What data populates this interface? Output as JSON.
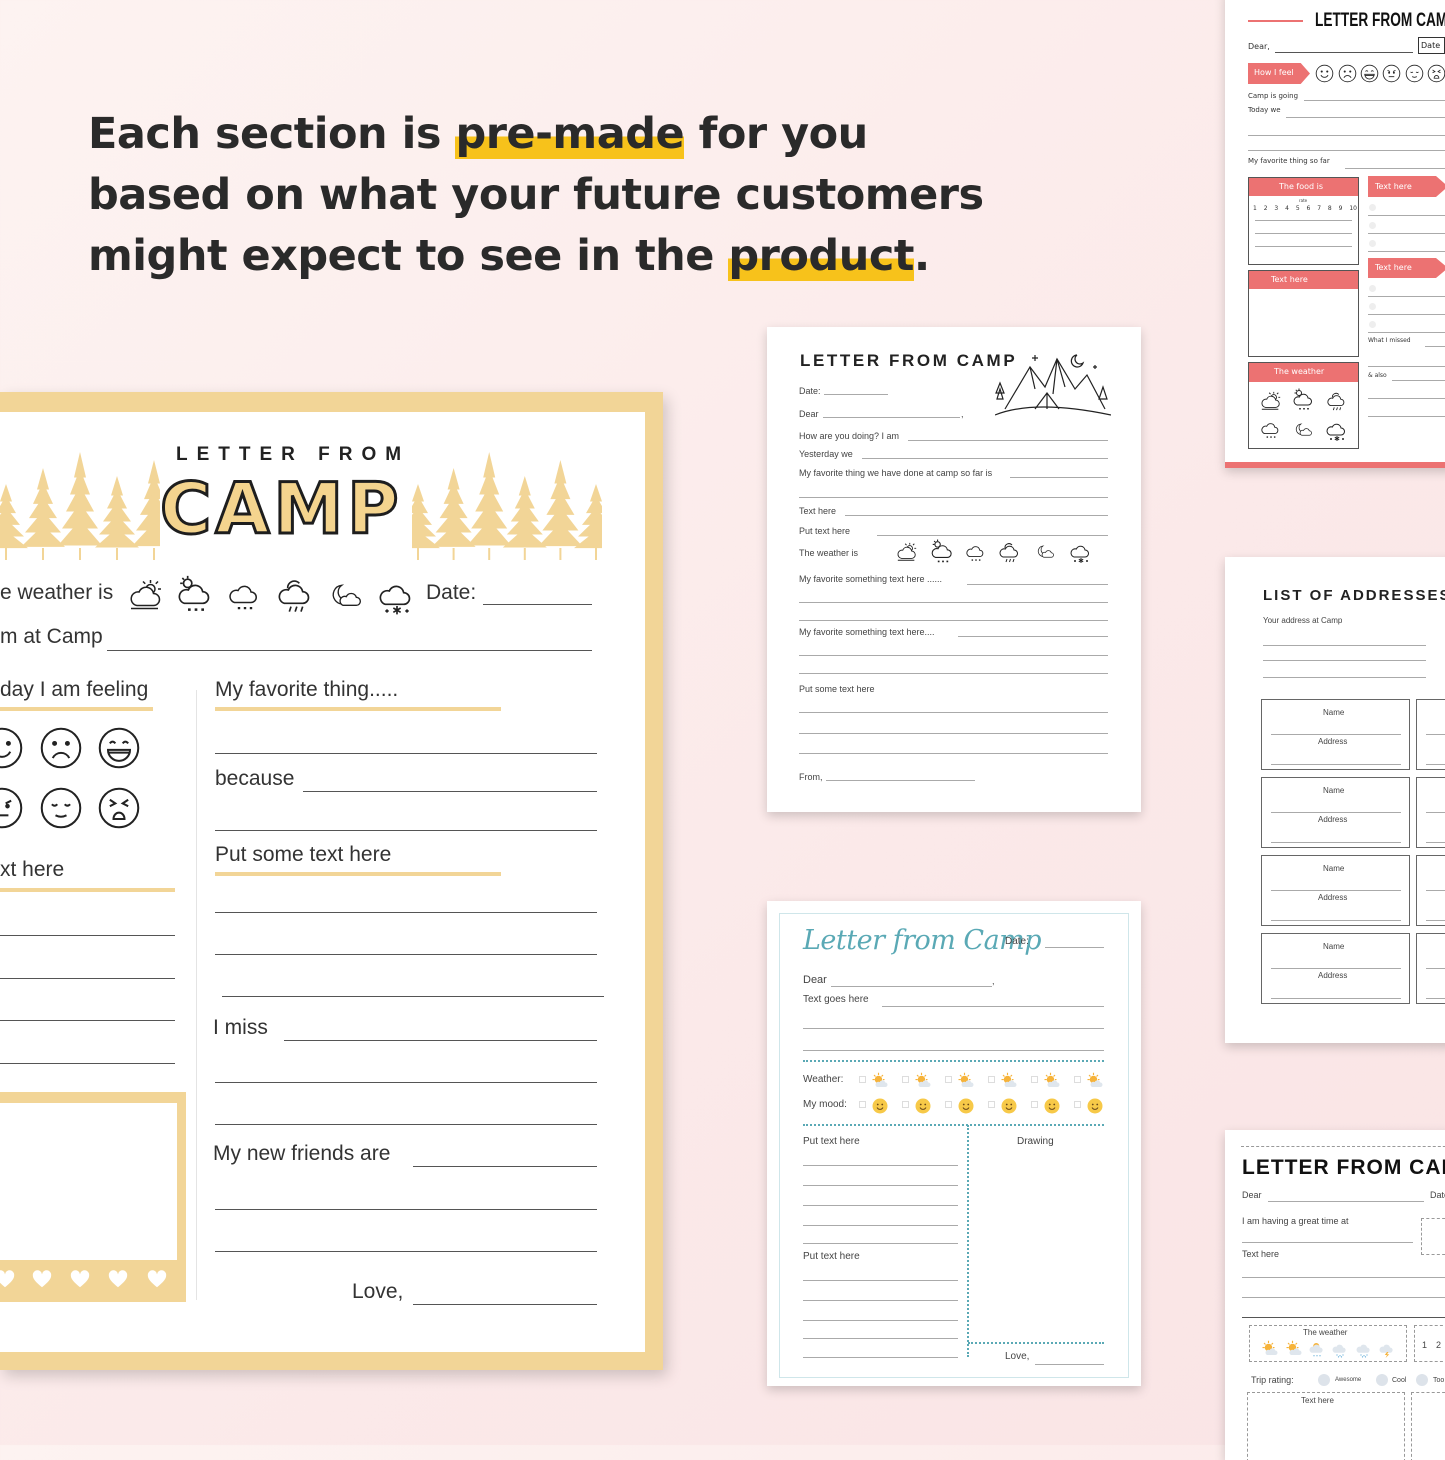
{
  "headline": {
    "line1_pre": "Each section is ",
    "line1_hl": "pre-made",
    "line1_post": " for you",
    "line2": "based on what your future customers",
    "line3_pre": "might expect to see in the ",
    "line3_hl": "product",
    "line3_post": "."
  },
  "colors": {
    "highlight": "#f7c21b",
    "yellow_frame": "#f2d597",
    "salmon": "#ec7272",
    "teal": "#5aa9b5"
  },
  "yellow_camp": {
    "title_small": "LETTER FROM",
    "title_big": "CAMP",
    "weather_label": "e weather is",
    "weather_icons": [
      "sun-cloud",
      "sun-rain",
      "rain",
      "storm",
      "moon-cloud",
      "snow"
    ],
    "date_label": "Date:",
    "camp_label": "m at Camp",
    "feeling_label": "day I am feeling",
    "faces": [
      "face-smile",
      "face-sad",
      "face-laugh",
      "face-annoyed",
      "face-sleepy",
      "face-angry"
    ],
    "text_here": "xt here",
    "favorite": "My favorite thing.....",
    "because": "because",
    "put_some_text": "Put some text here",
    "i_miss": "I miss",
    "new_friends": "My new friends are",
    "love": "Love,"
  },
  "mountain_letter": {
    "title": "LETTER FROM CAMP",
    "date": "Date:",
    "dear": "Dear",
    "comma": ",",
    "how_are_you": "How are you doing? I am",
    "yesterday": "Yesterday we",
    "favorite_done": "My favorite thing we have done at camp so far is",
    "text_here": "Text here",
    "put_text": "Put text here",
    "weather_is": "The weather is",
    "weather_icons": [
      "sun-cloud",
      "sun-rain",
      "rain",
      "storm",
      "moon-cloud",
      "snow"
    ],
    "fav_something_1": "My favorite something text here ......",
    "fav_something_2": "My favorite something text here....",
    "put_some_text": "Put some text here",
    "from": "From,"
  },
  "script_letter": {
    "title": "Letter from Camp",
    "date": "Date:",
    "dear": "Dear",
    "comma": ",",
    "text_goes": "Text goes here",
    "weather": "Weather:",
    "mood": "My mood:",
    "put_text_1": "Put text here",
    "drawing": "Drawing",
    "put_text_2": "Put text here",
    "love": "Love,"
  },
  "salmon_letter": {
    "title": "LETTER FROM CAMP",
    "dear": "Dear,",
    "date": "Date",
    "how_i_feel": "How I feel",
    "faces": [
      "face-smile",
      "face-sad",
      "face-laugh",
      "face-annoyed",
      "face-sleepy",
      "face-angry"
    ],
    "camp_going": "Camp is going",
    "today_we": "Today we",
    "favorite_so_far": "My favorite thing so far",
    "food_is": "The food is",
    "rate": "rate",
    "rating_numbers": [
      "1",
      "2",
      "3",
      "4",
      "5",
      "6",
      "7",
      "8",
      "9",
      "10"
    ],
    "text_here_box": "Text here",
    "the_weather": "The weather",
    "weather_icons": [
      "sun-cloud",
      "sun-rain",
      "storm",
      "rain",
      "moon-cloud",
      "snow"
    ],
    "text_here_tag_1": "Text here",
    "text_here_tag_2": "Text here",
    "what_i_missed": "What I missed",
    "and_also": "& also"
  },
  "addresses": {
    "title": "LIST OF ADDRESSES",
    "your_address": "Your address at Camp",
    "name": "Name",
    "address": "Address"
  },
  "modern_letter": {
    "title": "LETTER FROM CAMP",
    "dear": "Dear",
    "date": "Date",
    "great_time": "I am having a great time at",
    "text_here": "Text here",
    "the_weather": "The weather",
    "weather_icons": [
      "sun-color",
      "sun-color",
      "sun-rain-color",
      "rain-color",
      "rain-color",
      "storm-color"
    ],
    "numbers": [
      "1",
      "2"
    ],
    "trip_rating": "Trip rating:",
    "ratings": [
      "Awesome",
      "Cool",
      "Too"
    ],
    "text_here_box": "Text here"
  }
}
